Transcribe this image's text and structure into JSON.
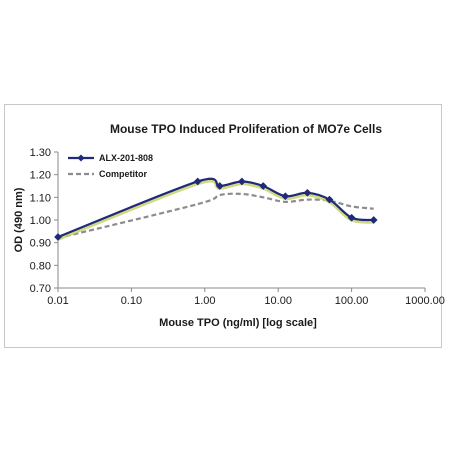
{
  "chart_data": {
    "type": "line",
    "title": "Mouse TPO Induced Proliferation of MO7e Cells",
    "xlabel": "Mouse TPO (ng/ml) [log scale]",
    "ylabel": "OD (490 nm)",
    "x_scale": "log",
    "xlim": [
      0.01,
      1000
    ],
    "ylim": [
      0.7,
      1.3
    ],
    "x_ticks": [
      "0.01",
      "0.10",
      "1.00",
      "10.00",
      "100.00",
      "1000.00"
    ],
    "y_ticks": [
      "0.70",
      "0.80",
      "0.90",
      "1.00",
      "1.10",
      "1.20",
      "1.30"
    ],
    "grid": false,
    "legend_position": "top-left",
    "series": [
      {
        "name": "ALX-201-808",
        "color": "#1f2a7a",
        "style": "solid-with-diamond-markers",
        "x": [
          0.01,
          0.8,
          1.6,
          3.2,
          6.25,
          12.5,
          25,
          50,
          100,
          200
        ],
        "y": [
          0.925,
          1.17,
          1.15,
          1.17,
          1.15,
          1.105,
          1.12,
          1.09,
          1.01,
          1.0
        ]
      },
      {
        "name": "Competitor",
        "color": "#8c8c8c",
        "style": "dashed",
        "x": [
          0.01,
          0.8,
          1.6,
          3.2,
          6.25,
          12.5,
          25,
          50,
          100,
          200
        ],
        "y": [
          0.92,
          1.07,
          1.11,
          1.115,
          1.1,
          1.08,
          1.09,
          1.085,
          1.06,
          1.05
        ]
      }
    ]
  }
}
